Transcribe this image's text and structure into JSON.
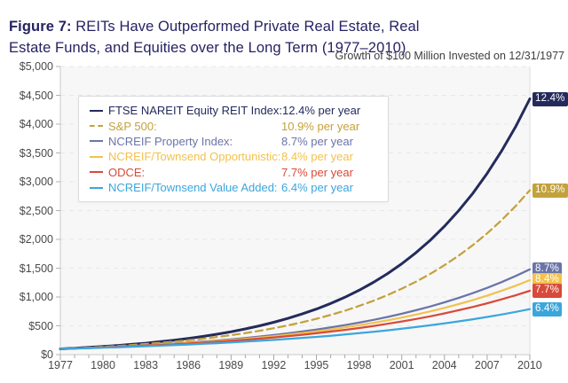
{
  "title": {
    "prefix": "Figure 7:",
    "line1_rest": " REITs Have Outperformed Private Real Estate, Real",
    "line2": "Estate Funds, and Equities over the Long Term (1977–2010)"
  },
  "subtitle": "Growth of $100 Million Invested on 12/31/1977",
  "colors": {
    "title_text": "#262262",
    "axis_text": "#4a4a4c",
    "plot_background": "#f7f7f8",
    "gridline": "#e7e7ea",
    "axis_line": "#c9c9cc"
  },
  "chart_data": {
    "type": "line",
    "title": "Figure 7: REITs Have Outperformed Private Real Estate, Real Estate Funds, and Equities over the Long Term (1977–2010)",
    "subtitle": "Growth of $100 Million Invested on 12/31/1977",
    "xlabel": "",
    "ylabel": "",
    "ylim": [
      0,
      5000
    ],
    "xlim": [
      1977,
      2010
    ],
    "grid": "horizontal-dashed",
    "legend_position": "top-left-inside",
    "y_tick_labels": [
      "$5,000",
      "$4,500",
      "$4,000",
      "$3,500",
      "$3,000",
      "$2,500",
      "$2,000",
      "$1,500",
      "$1,000",
      "$500",
      "$0"
    ],
    "x_tick_labels": [
      "1977",
      "1980",
      "1983",
      "1986",
      "1989",
      "1992",
      "1995",
      "1998",
      "2001",
      "2004",
      "2007",
      "2010"
    ],
    "years": [
      1977,
      1978,
      1979,
      1980,
      1981,
      1982,
      1983,
      1984,
      1985,
      1986,
      1987,
      1988,
      1989,
      1990,
      1991,
      1992,
      1993,
      1994,
      1995,
      1996,
      1997,
      1998,
      1999,
      2000,
      2001,
      2002,
      2003,
      2004,
      2005,
      2006,
      2007,
      2008,
      2009,
      2010
    ],
    "series": [
      {
        "name": "FTSE NAREIT Equity REIT Index",
        "label": "FTSE NAREIT Equity REIT Index:",
        "rate_label": "12.4% per year",
        "end_label": "12.4%",
        "color": "#242b5c",
        "dashed": false,
        "values": [
          100,
          112,
          126,
          141,
          158,
          178,
          199,
          224,
          251,
          281,
          316,
          354,
          397,
          446,
          500,
          561,
          629,
          706,
          791,
          888,
          996,
          1117,
          1254,
          1406,
          1577,
          1770,
          1985,
          2227,
          2498,
          2802,
          3144,
          3527,
          3956,
          4438
        ]
      },
      {
        "name": "S&P 500",
        "label": "S&P 500:",
        "rate_label": "10.9% per year",
        "end_label": "10.9%",
        "color": "#c3a23c",
        "dashed": true,
        "values": [
          100,
          111,
          122,
          136,
          150,
          166,
          184,
          204,
          225,
          249,
          276,
          306,
          338,
          374,
          414,
          459,
          508,
          562,
          622,
          689,
          762,
          844,
          934,
          1034,
          1144,
          1266,
          1402,
          1552,
          1717,
          1901,
          2104,
          2329,
          2578,
          2853
        ]
      },
      {
        "name": "NCREIF Property Index",
        "label": "NCREIF Property Index:",
        "rate_label": "8.7% per year",
        "end_label": "8.7%",
        "color": "#6b74a9",
        "dashed": false,
        "values": [
          100,
          109,
          118,
          128,
          139,
          150,
          163,
          177,
          192,
          209,
          226,
          245,
          266,
          289,
          314,
          340,
          369,
          401,
          435,
          472,
          512,
          556,
          603,
          654,
          710,
          770,
          836,
          907,
          984,
          1068,
          1159,
          1257,
          1364,
          1480
        ]
      },
      {
        "name": "NCREIF/Townsend Opportunistic",
        "label": "NCREIF/Townsend Opportunistic:",
        "rate_label": "8.4% per year",
        "end_label": "8.4%",
        "color": "#f1c24d",
        "dashed": false,
        "values": [
          100,
          108,
          117,
          126,
          136,
          147,
          159,
          172,
          186,
          201,
          217,
          235,
          254,
          274,
          296,
          320,
          346,
          374,
          404,
          436,
          472,
          510,
          551,
          595,
          643,
          695,
          751,
          811,
          877,
          948,
          1024,
          1106,
          1196,
          1292
        ]
      },
      {
        "name": "ODCE",
        "label": "ODCE:",
        "rate_label": "7.7% per year",
        "end_label": "7.7%",
        "color": "#d84a39",
        "dashed": false,
        "values": [
          100,
          108,
          116,
          125,
          134,
          144,
          155,
          167,
          179,
          193,
          207,
          223,
          240,
          258,
          277,
          298,
          321,
          345,
          371,
          400,
          430,
          462,
          497,
          535,
          575,
          619,
          665,
          716,
          770,
          828,
          891,
          958,
          1030,
          1108
        ]
      },
      {
        "name": "NCREIF/Townsend Value Added",
        "label": "NCREIF/Townsend Value Added:",
        "rate_label": "6.4% per year",
        "end_label": "6.4%",
        "color": "#3ba6dc",
        "dashed": false,
        "values": [
          100,
          106,
          113,
          121,
          128,
          137,
          146,
          155,
          165,
          176,
          187,
          199,
          212,
          226,
          240,
          256,
          272,
          290,
          308,
          328,
          350,
          372,
          396,
          422,
          449,
          478,
          509,
          542,
          577,
          614,
          654,
          696,
          741,
          789
        ]
      }
    ]
  }
}
